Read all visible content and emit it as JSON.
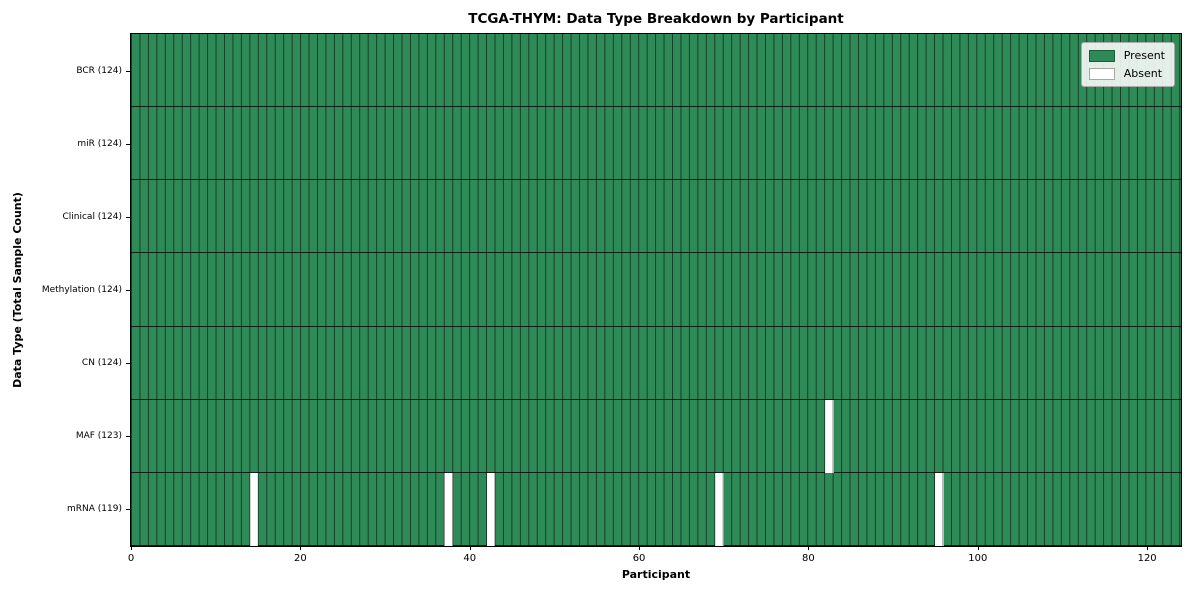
{
  "chart_data": {
    "type": "heatmap",
    "title": "TCGA-THYM: Data Type Breakdown by Participant",
    "xlabel": "Participant",
    "ylabel": "Data Type (Total Sample Count)",
    "n_participants": 124,
    "xlim": [
      0,
      124
    ],
    "x_ticks": [
      0,
      20,
      40,
      60,
      80,
      100,
      120
    ],
    "rows": [
      {
        "label": "BCR (124)",
        "data_type": "BCR",
        "present_count": 124,
        "absent_participants": []
      },
      {
        "label": "miR (124)",
        "data_type": "miR",
        "present_count": 124,
        "absent_participants": []
      },
      {
        "label": "Clinical (124)",
        "data_type": "Clinical",
        "present_count": 124,
        "absent_participants": []
      },
      {
        "label": "Methylation (124)",
        "data_type": "Methylation",
        "present_count": 124,
        "absent_participants": []
      },
      {
        "label": "CN (124)",
        "data_type": "CN",
        "present_count": 124,
        "absent_participants": []
      },
      {
        "label": "MAF (123)",
        "data_type": "MAF",
        "present_count": 123,
        "absent_participants": [
          82
        ]
      },
      {
        "label": "mRNA (119)",
        "data_type": "mRNA",
        "present_count": 119,
        "absent_participants": [
          14,
          37,
          42,
          69,
          95
        ]
      }
    ],
    "legend": {
      "position": "upper right",
      "entries": [
        {
          "label": "Present",
          "color": "#2e8b57"
        },
        {
          "label": "Absent",
          "color": "#ffffff"
        }
      ]
    },
    "colors": {
      "present": "#2e8b57",
      "absent": "#ffffff",
      "bar_edge": "rgba(0,0,0,0.55)",
      "row_separator": "#0f1f16",
      "spine": "#000000"
    },
    "grid": "off"
  }
}
